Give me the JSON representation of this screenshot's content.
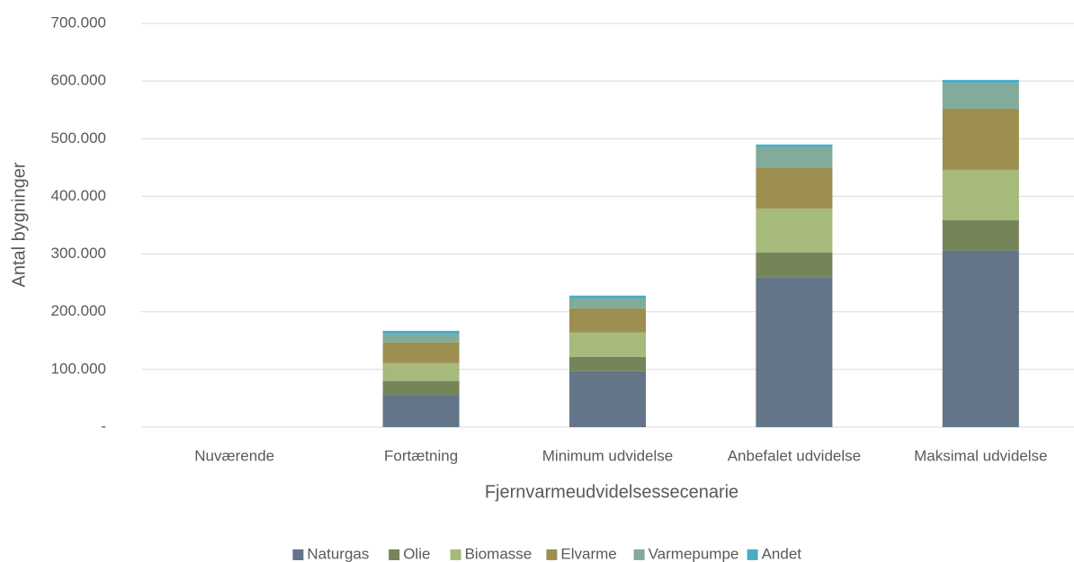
{
  "chart_data": {
    "type": "stacked_bar",
    "xlabel": "Fjernvarmeudvidelsessecenarie",
    "ylabel": "Antal bygninger",
    "categories": [
      "Nuværende",
      "Fortætning",
      "Minimum udvidelse",
      "Anbefalet udvidelse",
      "Maksimal udvidelse"
    ],
    "series": [
      {
        "name": "Naturgas",
        "color": "#647589",
        "values": [
          0,
          56000,
          97000,
          260000,
          306000
        ]
      },
      {
        "name": "Olie",
        "color": "#76845a",
        "values": [
          0,
          24000,
          25000,
          43000,
          53000
        ]
      },
      {
        "name": "Biomasse",
        "color": "#a6ba7c",
        "values": [
          0,
          31000,
          42000,
          76000,
          87000
        ]
      },
      {
        "name": "Elvarme",
        "color": "#9c8f50",
        "values": [
          0,
          36000,
          42000,
          70000,
          106000
        ]
      },
      {
        "name": "Varmepumpe",
        "color": "#82ab99",
        "values": [
          0,
          14000,
          17000,
          36000,
          44000
        ]
      },
      {
        "name": "Andet",
        "color": "#4bacc6",
        "values": [
          0,
          6000,
          5000,
          5000,
          6000
        ]
      }
    ],
    "ylim": [
      0,
      700000
    ],
    "yticks": [
      {
        "value": 0,
        "label": "-"
      },
      {
        "value": 100000,
        "label": "100.000"
      },
      {
        "value": 200000,
        "label": "200.000"
      },
      {
        "value": 300000,
        "label": "300.000"
      },
      {
        "value": 400000,
        "label": "400.000"
      },
      {
        "value": 500000,
        "label": "500.000"
      },
      {
        "value": 600000,
        "label": "600.000"
      },
      {
        "value": 700000,
        "label": "700.000"
      }
    ],
    "grid": true,
    "legend": "bottom"
  }
}
